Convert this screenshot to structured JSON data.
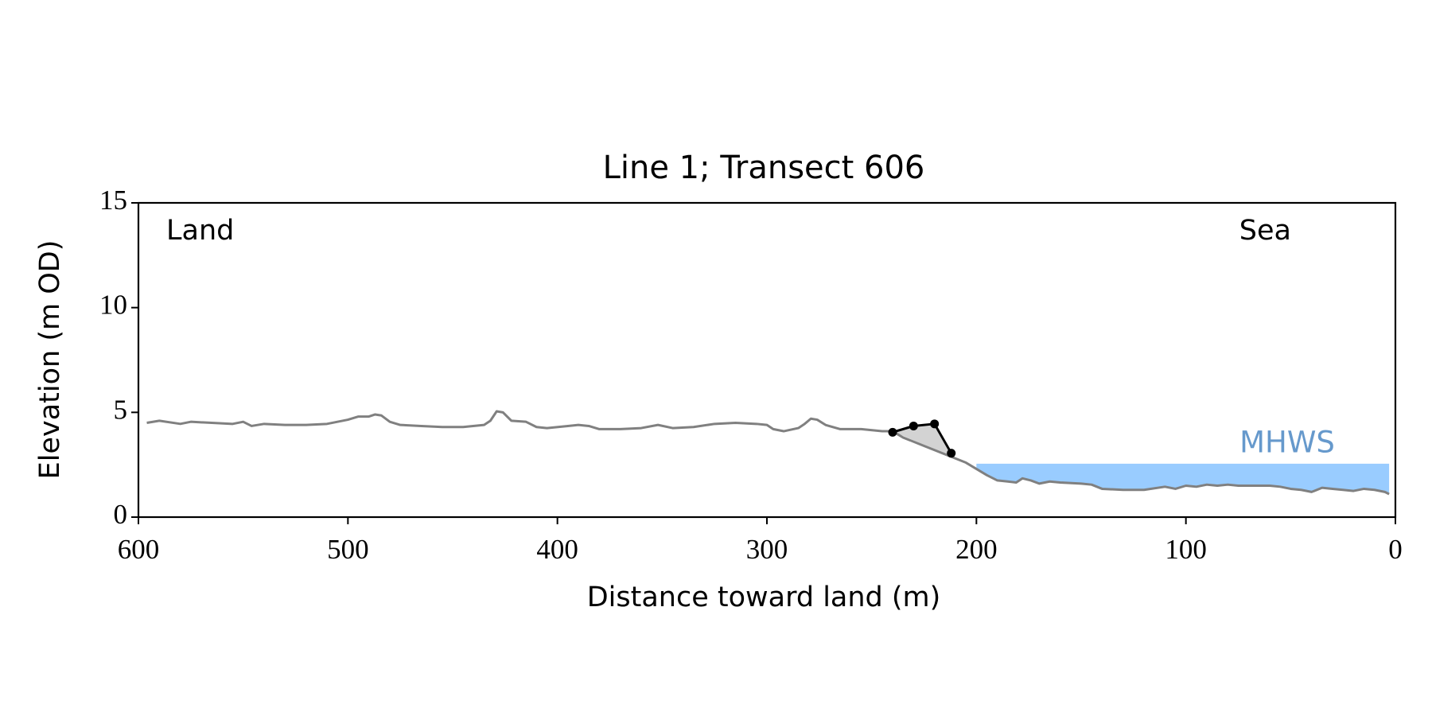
{
  "chart_data": {
    "type": "line",
    "title": "Line 1; Transect 606",
    "xlabel": "Distance toward land (m)",
    "ylabel": "Elevation (m OD)",
    "xlim": [
      600,
      0
    ],
    "ylim": [
      0,
      15
    ],
    "xticks": [
      600,
      500,
      400,
      300,
      200,
      100,
      0
    ],
    "yticks": [
      0,
      5,
      10,
      15
    ],
    "annotations": [
      {
        "text": "Land"
      },
      {
        "text": "Sea"
      }
    ],
    "mhws": {
      "label": "MHWS",
      "value": 2.55,
      "x": [
        200,
        3
      ],
      "color": "#99ccff",
      "label_color": "#6699cc"
    },
    "series": [
      {
        "color": "#808080",
        "x": [
          596,
          590,
          580,
          575,
          565,
          555,
          550,
          546,
          540,
          530,
          520,
          510,
          500,
          495,
          490,
          487,
          484,
          480,
          475,
          465,
          455,
          445,
          435,
          432,
          429,
          426,
          422,
          415,
          410,
          405,
          395,
          390,
          385,
          380,
          370,
          360,
          352,
          345,
          335,
          325,
          315,
          305,
          300,
          297,
          292,
          285,
          282,
          279,
          276,
          272,
          265,
          255,
          245,
          240,
          235,
          225,
          215,
          205,
          200,
          195,
          190,
          185,
          181,
          178,
          174,
          170,
          165,
          160,
          150,
          145,
          140,
          130,
          120,
          110,
          105,
          100,
          95,
          90,
          85,
          80,
          75,
          70,
          60,
          55,
          50,
          45,
          40,
          35,
          30,
          25,
          20,
          15,
          10,
          5,
          3
        ],
        "values": [
          4.5,
          4.6,
          4.45,
          4.55,
          4.5,
          4.45,
          4.55,
          4.35,
          4.45,
          4.4,
          4.4,
          4.45,
          4.65,
          4.8,
          4.8,
          4.9,
          4.85,
          4.55,
          4.4,
          4.35,
          4.3,
          4.3,
          4.4,
          4.6,
          5.05,
          5.0,
          4.6,
          4.55,
          4.3,
          4.25,
          4.35,
          4.4,
          4.35,
          4.2,
          4.2,
          4.25,
          4.4,
          4.25,
          4.3,
          4.45,
          4.5,
          4.45,
          4.4,
          4.2,
          4.1,
          4.25,
          4.45,
          4.7,
          4.65,
          4.4,
          4.2,
          4.2,
          4.1,
          4.1,
          3.8,
          3.4,
          3.0,
          2.6,
          2.3,
          2.0,
          1.75,
          1.7,
          1.65,
          1.85,
          1.75,
          1.6,
          1.7,
          1.65,
          1.6,
          1.55,
          1.35,
          1.3,
          1.3,
          1.45,
          1.35,
          1.5,
          1.45,
          1.55,
          1.5,
          1.55,
          1.5,
          1.5,
          1.5,
          1.45,
          1.35,
          1.3,
          1.2,
          1.4,
          1.35,
          1.3,
          1.25,
          1.35,
          1.3,
          1.2,
          1.1
        ]
      },
      {
        "color": "#000000",
        "markers": true,
        "x": [
          240,
          230,
          220,
          212
        ],
        "values": [
          4.05,
          4.35,
          4.45,
          3.05
        ]
      }
    ]
  }
}
